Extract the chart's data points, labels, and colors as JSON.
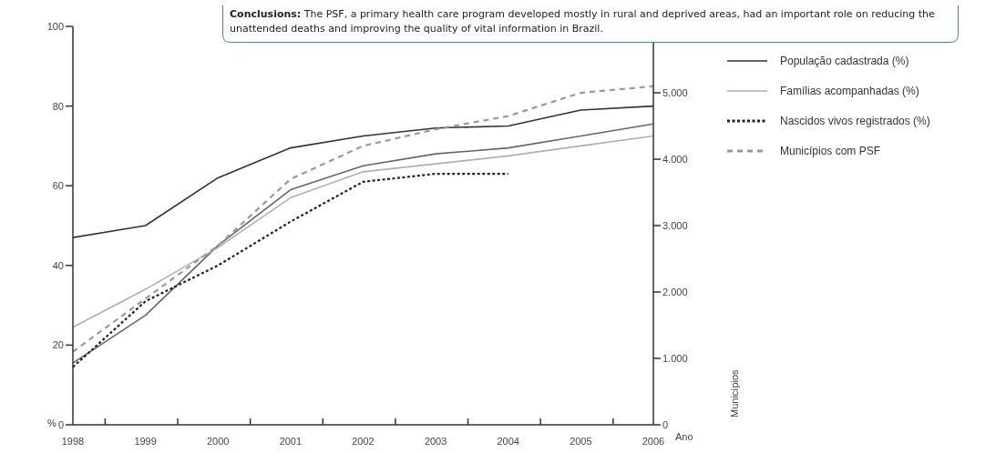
{
  "chart_data": {
    "type": "line",
    "annotations": [
      "Conclusions: The PSF, a primary health care program developed mostly in rural and deprived areas, had an important role on reducing the unattended deaths and improving the quality of vital information in Brazil."
    ],
    "xlabel": "Ano",
    "ylabel": "%",
    "y2label": "Municípios",
    "categories": [
      "1998",
      "1999",
      "2000",
      "2001",
      "2002",
      "2003",
      "2004",
      "2005",
      "2006"
    ],
    "ylim": [
      0,
      100
    ],
    "yticks": [
      0,
      20,
      40,
      60,
      80,
      100
    ],
    "y2lim": [
      0,
      6000
    ],
    "y2ticks": [
      {
        "value": 0,
        "label": "0"
      },
      {
        "value": 1000,
        "label": "1.000"
      },
      {
        "value": 2000,
        "label": "2.000"
      },
      {
        "value": 3000,
        "label": "3.000"
      },
      {
        "value": 4000,
        "label": "4.000"
      },
      {
        "value": 5000,
        "label": "5.000"
      }
    ],
    "grid": false,
    "legend": "right",
    "marker": "none",
    "series": [
      {
        "name": "População cadastrada (%)",
        "color": "#333333",
        "line_style": "solid",
        "values": [
          47,
          50,
          62,
          69.5,
          72.5,
          74.5,
          75,
          79,
          80
        ]
      },
      {
        "color": "#666666",
        "line_style": "solid",
        "values": [
          15.5,
          27.5,
          45,
          59,
          65,
          68,
          69.5,
          72.5,
          75.5
        ]
      },
      {
        "name": "Famílias acompanhadas (%)",
        "color": "#b0b0b0",
        "line_style": "solid",
        "values": [
          24.5,
          34,
          44.5,
          57,
          63.5,
          65.5,
          67.5,
          70,
          72.5
        ]
      },
      {
        "name": "Nascidos vivos registrados (%)",
        "color": "#222222",
        "line_style": "dotted",
        "values": [
          14.5,
          31,
          40,
          51,
          61,
          63,
          63,
          null,
          null
        ]
      },
      {
        "name": "Municípios com PSF",
        "color": "#999999",
        "line_style": "dashed",
        "axis": "y2",
        "values": [
          1100,
          1900,
          2700,
          3700,
          4200,
          4450,
          4650,
          5000,
          5100
        ]
      }
    ]
  }
}
